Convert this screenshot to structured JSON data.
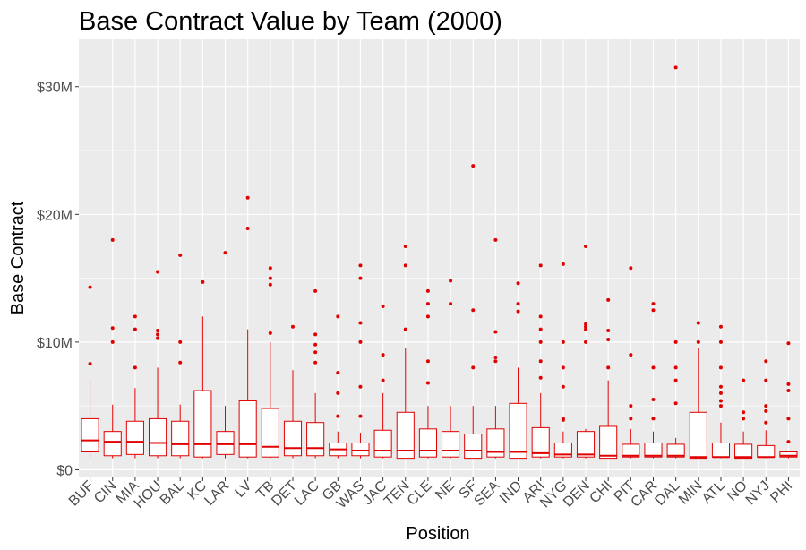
{
  "chart_data": {
    "type": "boxplot",
    "title": "Base Contract Value by Team (2000)",
    "xlabel": "Position",
    "ylabel": "Base Contract",
    "ylim": [
      -0.6,
      33.7
    ],
    "y_unit": "millions of dollars",
    "y_ticks": [
      {
        "value": 0,
        "label": "$0"
      },
      {
        "value": 10,
        "label": "$10M"
      },
      {
        "value": 20,
        "label": "$20M"
      },
      {
        "value": 30,
        "label": "$30M"
      }
    ],
    "grid": true,
    "background": "#ebebeb",
    "grid_color": "#ffffff",
    "box_color": "#e00000",
    "boxes": [
      {
        "team": "BUF",
        "min": 0.9,
        "q1": 1.4,
        "median": 2.3,
        "q3": 4.0,
        "max": 7.1,
        "outliers": [
          8.3,
          14.3
        ]
      },
      {
        "team": "CIN",
        "min": 0.9,
        "q1": 1.1,
        "median": 2.2,
        "q3": 3.0,
        "max": 5.1,
        "outliers": [
          10.0,
          11.1,
          18.0
        ]
      },
      {
        "team": "MIA",
        "min": 0.9,
        "q1": 1.2,
        "median": 2.2,
        "q3": 3.8,
        "max": 6.4,
        "outliers": [
          8.0,
          11.0,
          12.0
        ]
      },
      {
        "team": "HOU",
        "min": 0.9,
        "q1": 1.1,
        "median": 2.1,
        "q3": 4.0,
        "max": 8.0,
        "outliers": [
          10.3,
          10.6,
          10.9,
          15.5
        ]
      },
      {
        "team": "BAL",
        "min": 0.9,
        "q1": 1.1,
        "median": 2.0,
        "q3": 3.8,
        "max": 5.1,
        "outliers": [
          8.4,
          10.0,
          16.8
        ]
      },
      {
        "team": "KC",
        "min": 0.9,
        "q1": 1.0,
        "median": 2.0,
        "q3": 6.2,
        "max": 12.0,
        "outliers": [
          14.7
        ]
      },
      {
        "team": "LAR",
        "min": 0.9,
        "q1": 1.2,
        "median": 2.0,
        "q3": 3.0,
        "max": 5.0,
        "outliers": [
          17.0
        ]
      },
      {
        "team": "LV",
        "min": 0.9,
        "q1": 1.0,
        "median": 2.0,
        "q3": 5.4,
        "max": 11.0,
        "outliers": [
          18.9,
          21.3
        ]
      },
      {
        "team": "TB",
        "min": 0.9,
        "q1": 1.0,
        "median": 1.8,
        "q3": 4.8,
        "max": 10.0,
        "outliers": [
          10.7,
          14.5,
          15.0,
          15.8
        ]
      },
      {
        "team": "DET",
        "min": 0.9,
        "q1": 1.1,
        "median": 1.7,
        "q3": 3.8,
        "max": 7.8,
        "outliers": [
          11.2
        ]
      },
      {
        "team": "LAC",
        "min": 0.9,
        "q1": 1.1,
        "median": 1.7,
        "q3": 3.7,
        "max": 6.0,
        "outliers": [
          8.4,
          9.2,
          9.8,
          10.6,
          14.0
        ]
      },
      {
        "team": "GB",
        "min": 0.9,
        "q1": 1.1,
        "median": 1.6,
        "q3": 2.1,
        "max": 3.0,
        "outliers": [
          4.2,
          6.0,
          7.6,
          12.0
        ]
      },
      {
        "team": "WAS",
        "min": 0.9,
        "q1": 1.1,
        "median": 1.5,
        "q3": 2.1,
        "max": 2.9,
        "outliers": [
          4.2,
          6.5,
          10.0,
          11.5,
          15.0,
          16.0
        ]
      },
      {
        "team": "JAC",
        "min": 0.9,
        "q1": 1.0,
        "median": 1.5,
        "q3": 3.1,
        "max": 6.0,
        "outliers": [
          7.0,
          9.0,
          12.8
        ]
      },
      {
        "team": "TEN",
        "min": 0.9,
        "q1": 0.9,
        "median": 1.5,
        "q3": 4.5,
        "max": 9.5,
        "outliers": [
          11.0,
          16.0,
          17.5
        ]
      },
      {
        "team": "CLE",
        "min": 0.9,
        "q1": 1.0,
        "median": 1.5,
        "q3": 3.2,
        "max": 5.0,
        "outliers": [
          6.8,
          8.5,
          12.0,
          13.0,
          14.0
        ]
      },
      {
        "team": "NE",
        "min": 0.9,
        "q1": 1.0,
        "median": 1.5,
        "q3": 3.0,
        "max": 5.0,
        "outliers": [
          13.0,
          14.8
        ]
      },
      {
        "team": "SF",
        "min": 0.9,
        "q1": 0.9,
        "median": 1.5,
        "q3": 2.8,
        "max": 5.0,
        "outliers": [
          8.0,
          12.5,
          23.8
        ]
      },
      {
        "team": "SEA",
        "min": 0.9,
        "q1": 1.0,
        "median": 1.4,
        "q3": 3.2,
        "max": 5.0,
        "outliers": [
          8.5,
          8.8,
          10.8,
          18.0
        ]
      },
      {
        "team": "IND",
        "min": 0.9,
        "q1": 0.9,
        "median": 1.4,
        "q3": 5.2,
        "max": 8.0,
        "outliers": [
          12.4,
          13.0,
          14.6
        ]
      },
      {
        "team": "ARI",
        "min": 0.9,
        "q1": 1.0,
        "median": 1.3,
        "q3": 3.3,
        "max": 6.0,
        "outliers": [
          7.2,
          8.5,
          10.0,
          11.0,
          12.0,
          16.0
        ]
      },
      {
        "team": "NYG",
        "min": 0.9,
        "q1": 1.0,
        "median": 1.2,
        "q3": 2.1,
        "max": 3.0,
        "outliers": [
          3.9,
          4.0,
          6.5,
          8.0,
          10.0,
          16.1
        ]
      },
      {
        "team": "DEN",
        "min": 0.9,
        "q1": 1.0,
        "median": 1.2,
        "q3": 3.0,
        "max": 3.2,
        "outliers": [
          10.0,
          11.0,
          11.2,
          11.4,
          17.5
        ]
      },
      {
        "team": "CHI",
        "min": 0.9,
        "q1": 0.9,
        "median": 1.1,
        "q3": 3.4,
        "max": 7.0,
        "outliers": [
          8.0,
          10.2,
          10.9,
          13.3
        ]
      },
      {
        "team": "PIT",
        "min": 0.9,
        "q1": 1.0,
        "median": 1.1,
        "q3": 2.0,
        "max": 3.2,
        "outliers": [
          4.0,
          5.0,
          9.0,
          15.8
        ]
      },
      {
        "team": "CAR",
        "min": 0.9,
        "q1": 1.0,
        "median": 1.1,
        "q3": 2.1,
        "max": 3.0,
        "outliers": [
          4.0,
          5.5,
          8.0,
          12.5,
          13.0
        ]
      },
      {
        "team": "DAL",
        "min": 0.9,
        "q1": 1.0,
        "median": 1.1,
        "q3": 2.0,
        "max": 2.5,
        "outliers": [
          5.2,
          7.0,
          8.0,
          10.0,
          31.5
        ]
      },
      {
        "team": "MIN",
        "min": 0.9,
        "q1": 0.9,
        "median": 1.0,
        "q3": 4.5,
        "max": 9.5,
        "outliers": [
          10.0,
          11.5
        ]
      },
      {
        "team": "ATL",
        "min": 0.9,
        "q1": 1.0,
        "median": 1.0,
        "q3": 2.1,
        "max": 3.7,
        "outliers": [
          5.0,
          5.4,
          6.0,
          6.5,
          8.0,
          10.0,
          11.2
        ]
      },
      {
        "team": "NO",
        "min": 0.9,
        "q1": 0.9,
        "median": 1.0,
        "q3": 2.0,
        "max": 3.0,
        "outliers": [
          4.0,
          4.5,
          7.0
        ]
      },
      {
        "team": "NYJ",
        "min": 0.9,
        "q1": 1.0,
        "median": 1.0,
        "q3": 1.9,
        "max": 3.1,
        "outliers": [
          3.7,
          4.6,
          5.0,
          7.0,
          8.5
        ]
      },
      {
        "team": "PHI",
        "min": 0.9,
        "q1": 1.0,
        "median": 1.1,
        "q3": 1.4,
        "max": 1.5,
        "outliers": [
          2.2,
          4.0,
          6.2,
          6.7,
          9.9
        ]
      }
    ]
  }
}
